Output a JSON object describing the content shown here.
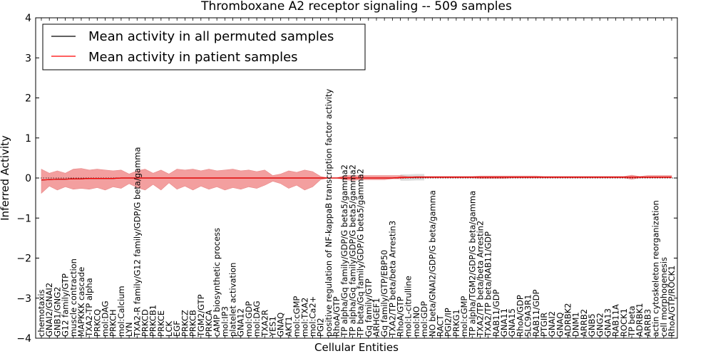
{
  "chart_data": {
    "type": "line",
    "title": "Thromboxane A2 receptor signaling -- 509 samples",
    "xlabel": "Cellular Entities",
    "ylabel": "Inferred Activity",
    "ylim": [
      -4,
      4
    ],
    "yticks": [
      "−4",
      "−3",
      "−2",
      "−1",
      "0",
      "1",
      "2",
      "3",
      "4"
    ],
    "grid": false,
    "legend_position": "top-left",
    "colors": {
      "mean_all": "#000000",
      "mean_patient": "#ff0000",
      "band_patient": "#f08080",
      "band_all": "#c8c8c8"
    },
    "categories": [
      "chemotaxis",
      "GNAI2/GNAI2",
      "GNB1/GNG2",
      "G12 family/GTP",
      "muscle contraction",
      "MAPKKK cascade",
      "TXA2-TP alpha",
      "PRKCQ",
      "mol:DAG",
      "PRKCH",
      "mol:Calcium",
      "LYN",
      "TXA2-R family/G12 family/GDP/G beta/gamma",
      "PRKCD",
      "PRKCB1",
      "PRKCE",
      "LCK",
      "EGF",
      "PRKCZ",
      "PRKCB",
      "TGM2/GTP",
      "PRKCA",
      "cAMP biosynthetic process",
      "mol:IP3",
      "platelet activation",
      "GNA12",
      "mol:GDP",
      "mol:DAG",
      "TXA2R",
      "YES1",
      "GNAQ",
      "AKT1",
      "mol:cGMP",
      "mol:TXA2",
      "mol:Ca2+",
      "PGI2",
      "positive regulation of NF-kappaB transcription factor activity",
      "RhoA/GTP",
      "TP alpha/Gq family/GDP/G beta5/gamma2",
      "TP alpha/Gq family/GDP/G beta5/gamma2",
      "TP beta/Gq family/GDP/G beta5/gamma2",
      "Gq family/GTP",
      "ARHGEF1",
      "Gq family/GTP/EBP50",
      "TXA2/TP beta/beta Arrestin3",
      "RhoA/GTP",
      "mol:L-citrulline",
      "mol:NO",
      "mol:GDP",
      "NO beta/GNAI2/GDP/G beta/gamma",
      "RACT",
      "PGI2/IP",
      "PRKG1",
      "mol:cGMP",
      "TP alpha/TGM2/GDP/G beta/gamma",
      "TXA2/TP beta/beta Arrestin2",
      "TXA2/TP beta/RAB11/GDP",
      "RAB11/GDP",
      "GNA11",
      "GNA15",
      "RhoA/GDP",
      "SLC9A3R1",
      "RAB11/GDP",
      "PTGIR",
      "GNAI2",
      "GNAQ",
      "ADRBK2",
      "DNM1",
      "ARRB2",
      "GNB5",
      "GNG2",
      "GNA13",
      "RAB11A",
      "ROCK1",
      "TP beta",
      "ADRBK1",
      "ARRB3",
      "actin cytoskeleton reorganization",
      "cell morphogenesis",
      "RhoA/GTP/ROCK1"
    ],
    "series": [
      {
        "name": "Mean activity in all permuted samples",
        "values": [
          -0.05,
          -0.04,
          -0.03,
          -0.03,
          -0.02,
          -0.02,
          -0.01,
          -0.01,
          -0.01,
          -0.01,
          0.0,
          0.0,
          0.0,
          0.0,
          0.0,
          0.0,
          0.0,
          0.0,
          0.0,
          0.0,
          0.0,
          0.0,
          0.0,
          0.0,
          0.0,
          0.0,
          0.0,
          0.0,
          0.0,
          0.0,
          0.0,
          0.0,
          0.0,
          0.0,
          0.0,
          0.0,
          0.0,
          0.0,
          0.0,
          0.0,
          0.0,
          0.0,
          0.0,
          0.0,
          0.0,
          0.01,
          0.01,
          0.02,
          0.02,
          0.02,
          0.02,
          0.02,
          0.02,
          0.02,
          0.02,
          0.02,
          0.02,
          0.02,
          0.02,
          0.02,
          0.02,
          0.02,
          0.02,
          0.02,
          0.02,
          0.02,
          0.02,
          0.02,
          0.02,
          0.02,
          0.02,
          0.02,
          0.02,
          0.02,
          0.02,
          0.02,
          0.02,
          0.02,
          0.02,
          0.02
        ]
      },
      {
        "name": "Mean activity in patient samples",
        "values": [
          -0.05,
          -0.04,
          -0.03,
          -0.03,
          -0.02,
          -0.02,
          -0.01,
          -0.01,
          -0.01,
          -0.01,
          0.0,
          0.0,
          0.0,
          0.0,
          0.0,
          0.0,
          0.0,
          0.0,
          0.0,
          0.0,
          0.0,
          0.0,
          0.0,
          0.0,
          0.0,
          0.0,
          0.0,
          0.0,
          0.0,
          0.0,
          0.0,
          0.0,
          0.0,
          0.0,
          0.0,
          0.0,
          0.0,
          0.0,
          0.0,
          0.0,
          0.0,
          0.0,
          0.0,
          0.0,
          0.0,
          0.01,
          0.01,
          0.02,
          0.02,
          0.02,
          0.02,
          0.02,
          0.02,
          0.02,
          0.02,
          0.02,
          0.02,
          0.02,
          0.02,
          0.02,
          0.02,
          0.02,
          0.02,
          0.02,
          0.02,
          0.02,
          0.02,
          0.02,
          0.02,
          0.02,
          0.02,
          0.02,
          0.02,
          0.02,
          0.02,
          0.02,
          0.02,
          0.02,
          0.02,
          0.02
        ],
        "band_upper": [
          0.22,
          0.12,
          0.18,
          0.12,
          0.22,
          0.24,
          0.2,
          0.22,
          0.2,
          0.18,
          0.2,
          0.1,
          0.18,
          0.22,
          0.12,
          0.2,
          0.1,
          0.22,
          0.2,
          0.22,
          0.18,
          0.22,
          0.18,
          0.2,
          0.22,
          0.18,
          0.2,
          0.16,
          0.2,
          0.06,
          0.1,
          0.18,
          0.14,
          0.2,
          0.16,
          0.04,
          0.0,
          0.0,
          0.06,
          0.06,
          0.06,
          0.06,
          0.06,
          0.06,
          0.06,
          0.06,
          0.04,
          0.04,
          0.04,
          0.04,
          0.04,
          0.04,
          0.04,
          0.04,
          0.04,
          0.05,
          0.05,
          0.05,
          0.05,
          0.05,
          0.05,
          0.05,
          0.05,
          0.04,
          0.04,
          0.04,
          0.04,
          0.04,
          0.04,
          0.04,
          0.04,
          0.04,
          0.04,
          0.04,
          0.07,
          0.04,
          0.06,
          0.06,
          0.06,
          0.06
        ],
        "band_lower": [
          -0.38,
          -0.2,
          -0.3,
          -0.22,
          -0.28,
          -0.26,
          -0.28,
          -0.24,
          -0.3,
          -0.22,
          -0.26,
          -0.14,
          -0.24,
          -0.3,
          -0.16,
          -0.3,
          -0.12,
          -0.28,
          -0.2,
          -0.3,
          -0.2,
          -0.28,
          -0.22,
          -0.3,
          -0.24,
          -0.28,
          -0.22,
          -0.26,
          -0.18,
          -0.08,
          -0.14,
          -0.26,
          -0.18,
          -0.3,
          -0.22,
          -0.04,
          0.0,
          0.0,
          -0.04,
          -0.06,
          -0.04,
          -0.04,
          -0.04,
          -0.04,
          -0.02,
          -0.02,
          0.0,
          0.0,
          0.0,
          0.0,
          0.0,
          0.0,
          0.0,
          0.0,
          0.0,
          -0.01,
          -0.01,
          -0.01,
          -0.01,
          0.0,
          0.0,
          0.0,
          0.0,
          0.0,
          0.0,
          0.0,
          0.0,
          0.0,
          0.0,
          0.0,
          0.0,
          0.0,
          0.0,
          0.0,
          -0.03,
          0.0,
          0.0,
          0.0,
          0.0,
          0.0
        ]
      }
    ]
  }
}
